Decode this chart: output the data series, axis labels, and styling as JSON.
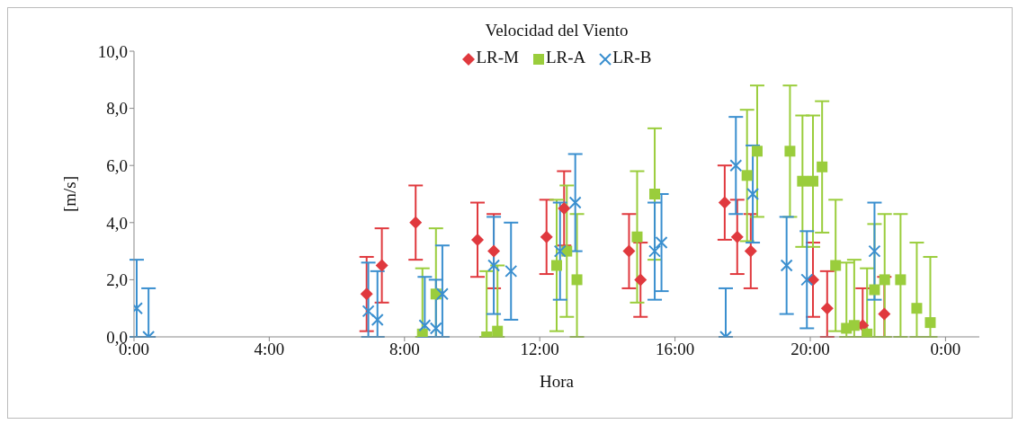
{
  "chart_data": {
    "type": "scatter",
    "title": "Velocidad del Viento",
    "xlabel": "Hora",
    "ylabel": "[m/s]",
    "xlim": [
      0,
      25
    ],
    "xticks": [
      {
        "value": 0,
        "label": "0:00"
      },
      {
        "value": 4,
        "label": "4:00"
      },
      {
        "value": 8,
        "label": "8:00"
      },
      {
        "value": 12,
        "label": "12:00"
      },
      {
        "value": 16,
        "label": "16:00"
      },
      {
        "value": 20,
        "label": "20:00"
      },
      {
        "value": 24,
        "label": "0:00"
      }
    ],
    "ylim": [
      0,
      10
    ],
    "yticks": [
      {
        "value": 0,
        "label": "0,0"
      },
      {
        "value": 2,
        "label": "2,0"
      },
      {
        "value": 4,
        "label": "4,0"
      },
      {
        "value": 6,
        "label": "6,0"
      },
      {
        "value": 8,
        "label": "8,0"
      },
      {
        "value": 10,
        "label": "10,0"
      }
    ],
    "grid": false,
    "legend": "top",
    "series": [
      {
        "name": "LR-M",
        "color": "#e0393e",
        "marker": "diamond",
        "x": [
          6.88,
          7.33,
          8.33,
          10.16,
          10.64,
          12.2,
          12.72,
          14.64,
          14.98,
          17.47,
          17.84,
          18.24,
          20.08,
          20.5,
          21.55,
          22.19
        ],
        "values": [
          1.5,
          2.5,
          4.0,
          3.4,
          3.0,
          3.5,
          4.5,
          3.0,
          2.0,
          4.7,
          3.5,
          3.0,
          2.0,
          1.0,
          0.4,
          0.8
        ],
        "errors": [
          1.3,
          1.3,
          1.3,
          1.3,
          1.3,
          1.3,
          1.3,
          1.3,
          1.3,
          1.3,
          1.3,
          1.3,
          1.3,
          [
            0,
            2.3
          ],
          [
            0,
            1.7
          ],
          [
            0,
            2.1
          ]
        ]
      },
      {
        "name": "LR-A",
        "color": "#9acd3c",
        "marker": "square",
        "x": [
          8.53,
          8.93,
          10.43,
          10.75,
          12.5,
          12.8,
          13.1,
          14.88,
          15.4,
          18.13,
          18.43,
          19.4,
          19.77,
          20.08,
          20.35,
          20.75,
          21.07,
          21.3,
          21.68,
          21.9,
          22.2,
          22.67,
          23.15,
          23.55
        ],
        "values": [
          0.1,
          1.5,
          0.0,
          0.2,
          2.5,
          3.0,
          2.0,
          3.5,
          5.0,
          5.65,
          6.5,
          6.5,
          5.45,
          5.45,
          5.95,
          2.5,
          0.3,
          0.4,
          0.1,
          1.65,
          2.0,
          2.0,
          1.0,
          0.5
        ],
        "errors": [
          [
            0,
            2.4
          ],
          [
            0,
            3.8
          ],
          [
            0,
            2.3
          ],
          [
            0,
            2.5
          ],
          2.3,
          2.3,
          [
            0,
            4.3
          ],
          2.3,
          2.3,
          2.3,
          2.3,
          2.3,
          2.3,
          2.3,
          2.3,
          2.3,
          [
            0,
            2.6
          ],
          [
            0,
            2.7
          ],
          [
            0,
            2.4
          ],
          [
            0,
            3.95
          ],
          [
            0,
            4.3
          ],
          [
            0,
            4.3
          ],
          [
            0,
            3.3
          ],
          [
            0,
            2.8
          ]
        ]
      },
      {
        "name": "LR-B",
        "color": "#3a8fcf",
        "marker": "cross",
        "x": [
          0.08,
          0.43,
          6.93,
          7.2,
          8.6,
          8.93,
          9.12,
          10.64,
          11.15,
          12.6,
          13.05,
          15.4,
          15.6,
          17.5,
          17.8,
          18.3,
          19.3,
          19.9,
          21.9
        ],
        "values": [
          1.0,
          0.0,
          0.9,
          0.6,
          0.4,
          0.3,
          1.5,
          2.5,
          2.3,
          3.0,
          4.7,
          3.0,
          3.3,
          0.0,
          6.0,
          5.0,
          2.5,
          2.0,
          3.0
        ],
        "errors": [
          [
            0,
            2.7
          ],
          [
            0,
            1.7
          ],
          [
            0,
            2.6
          ],
          [
            0,
            2.3
          ],
          [
            0,
            2.1
          ],
          [
            0,
            2.0
          ],
          [
            0,
            3.2
          ],
          1.7,
          1.7,
          1.7,
          1.7,
          1.7,
          1.7,
          [
            0,
            1.7
          ],
          1.7,
          1.7,
          1.7,
          1.7,
          1.7
        ]
      }
    ]
  }
}
